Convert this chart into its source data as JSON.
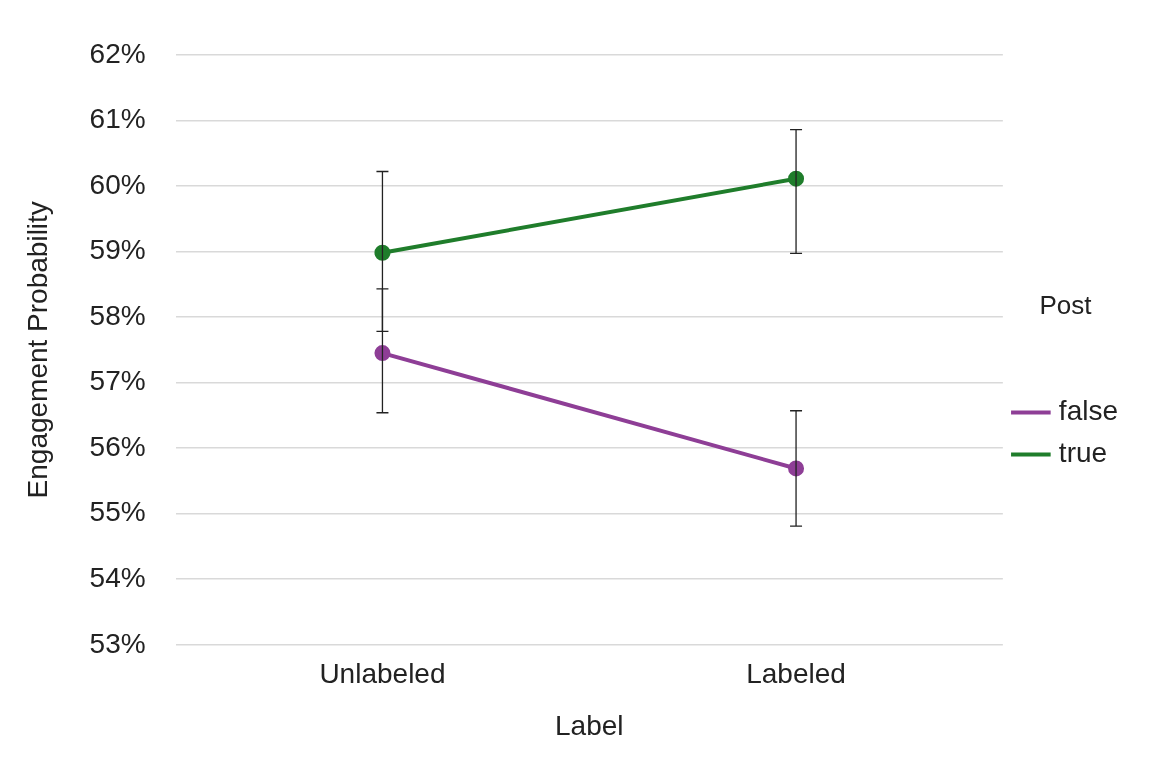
{
  "chart_data": {
    "type": "line",
    "xlabel": "Label",
    "ylabel": "Engagement Probability",
    "legend_title": "Post",
    "categories": [
      "Unlabeled",
      "Labeled"
    ],
    "series": [
      {
        "name": "false",
        "color": "#8e3e96",
        "values": [
          57.45,
          55.69
        ],
        "errors": [
          [
            56.54,
            58.43
          ],
          [
            54.81,
            56.57
          ]
        ]
      },
      {
        "name": "true",
        "color": "#1f7d2b",
        "values": [
          58.98,
          60.11
        ],
        "errors": [
          [
            57.78,
            60.22
          ],
          [
            58.97,
            60.86
          ]
        ]
      }
    ],
    "ylim": [
      53,
      62
    ],
    "yticks": [
      {
        "value": 53,
        "label": "53%"
      },
      {
        "value": 54,
        "label": "54%"
      },
      {
        "value": 55,
        "label": "55%"
      },
      {
        "value": 56,
        "label": "56%"
      },
      {
        "value": 57,
        "label": "57%"
      },
      {
        "value": 58,
        "label": "58%"
      },
      {
        "value": 59,
        "label": "59%"
      },
      {
        "value": 60,
        "label": "60%"
      },
      {
        "value": 61,
        "label": "61%"
      },
      {
        "value": 62,
        "label": "62%"
      }
    ],
    "grid": "y",
    "legend": "right",
    "marker": "circle",
    "line_style": "solid"
  }
}
